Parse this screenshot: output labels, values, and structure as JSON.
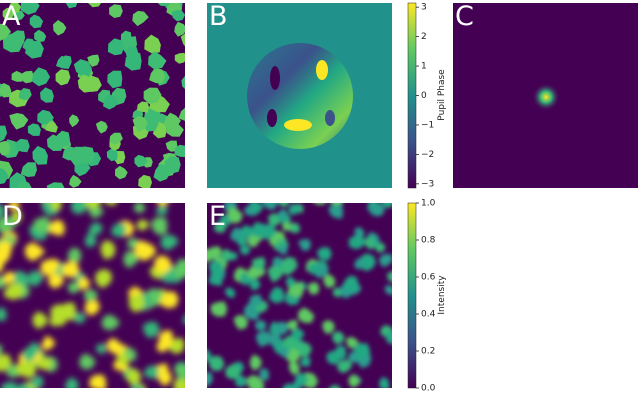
{
  "panels": [
    {
      "label": "A"
    },
    {
      "label": "B"
    },
    {
      "label": "C"
    },
    {
      "label": "D"
    },
    {
      "label": "E"
    }
  ],
  "colorbars": [
    {
      "label": "Pupil Phase",
      "lim": [
        -3.1416,
        3.1416
      ],
      "ticks": [
        3,
        2,
        1,
        0,
        {
          "value": -1,
          "label": "−1"
        },
        {
          "value": -2,
          "label": "−2"
        },
        {
          "value": -3,
          "label": "−3"
        }
      ]
    },
    {
      "label": "Intensity",
      "lim": [
        0,
        1
      ],
      "ticks": [
        {
          "value": 1,
          "label": "1.0"
        },
        0.8,
        0.6,
        0.4,
        0.2,
        {
          "value": 0,
          "label": "0.0"
        }
      ]
    }
  ]
}
